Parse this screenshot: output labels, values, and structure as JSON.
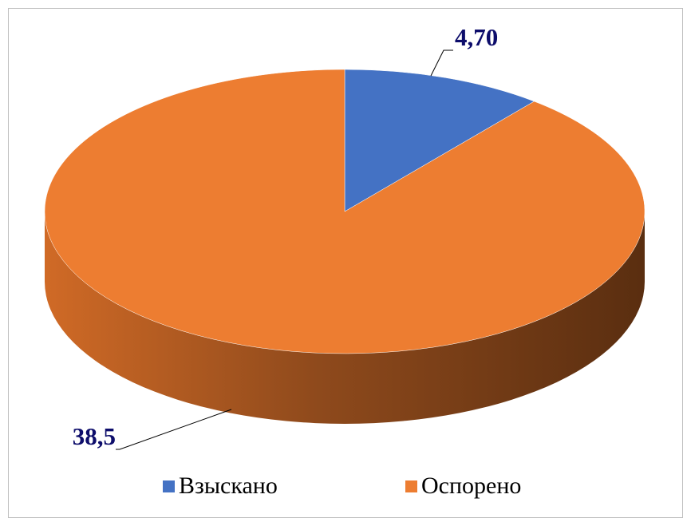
{
  "chart_data": {
    "type": "pie",
    "categories": [
      "Взыскано",
      "Оспорено"
    ],
    "values": [
      4.7,
      38.5
    ],
    "value_labels": [
      "4,70",
      "38,5"
    ],
    "colors": [
      "#4472c4",
      "#ed7d31"
    ]
  }
}
